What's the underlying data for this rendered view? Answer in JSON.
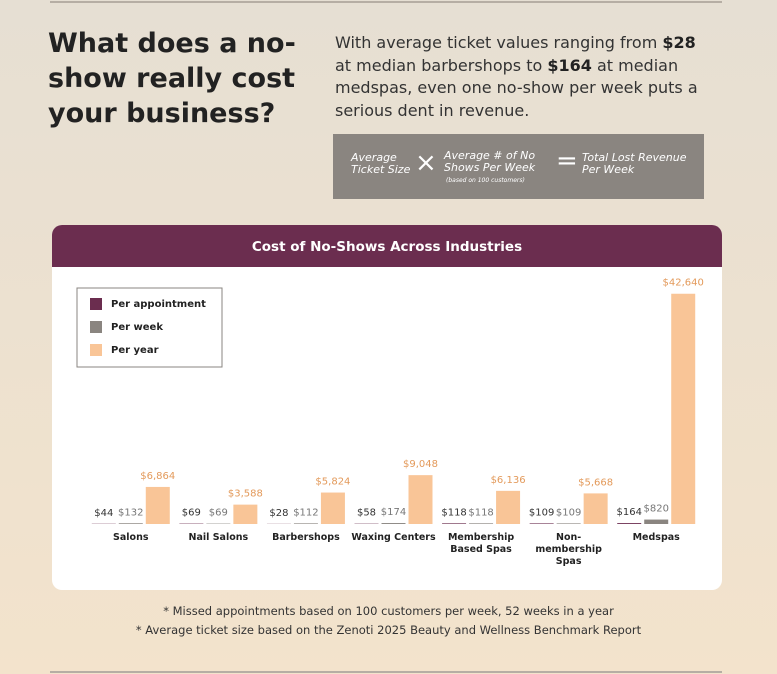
{
  "header": {
    "title": "What does a no-show really cost your business?",
    "intro": [
      "With average ticket values ranging from ",
      "$28",
      " at median barbershops to ",
      "$164",
      " at median medspas, even one no-show per week puts a serious dent in revenue."
    ]
  },
  "formula": {
    "term1": "Average Ticket Size",
    "times": "×",
    "term2": "Average # of No Shows Per Week",
    "term2_note": "(based on 100 customers)",
    "equals": "=",
    "result": "Total Lost Revenue Per Week"
  },
  "chart_data": {
    "type": "bar",
    "title": "Cost of No-Shows Across Industries",
    "categories": [
      "Salons",
      "Nail Salons",
      "Barbershops",
      "Waxing Centers",
      "Membership Based Spas",
      "Non-membership Spas",
      "Medspas"
    ],
    "series": [
      {
        "name": "Per appointment",
        "color": "#6b2d4f",
        "values": [
          44,
          69,
          28,
          58,
          118,
          109,
          164
        ],
        "value_labels": [
          "$44",
          "$69",
          "$28",
          "$58",
          "$118",
          "$109",
          "$164"
        ]
      },
      {
        "name": "Per week",
        "color": "#8a8580",
        "values": [
          132,
          69,
          112,
          174,
          118,
          109,
          820
        ],
        "value_labels": [
          "$132",
          "$69",
          "$112",
          "$174",
          "$118",
          "$109",
          "$820"
        ]
      },
      {
        "name": "Per year",
        "color": "#f9c597",
        "values": [
          6864,
          3588,
          5824,
          9048,
          6136,
          5668,
          42640
        ],
        "value_labels": [
          "$6,864",
          "$3,588",
          "$5,824",
          "$9,048",
          "$6,136",
          "$5,668",
          "$42,640"
        ]
      }
    ],
    "ylim": [
      0,
      45000
    ],
    "grid": false,
    "legend": "top-left"
  },
  "footnotes": [
    "* Missed appointments based on 100 customers per week, 52 weeks in a year",
    "* Average ticket size based on the Zenoti 2025 Beauty and Wellness Benchmark Report"
  ]
}
